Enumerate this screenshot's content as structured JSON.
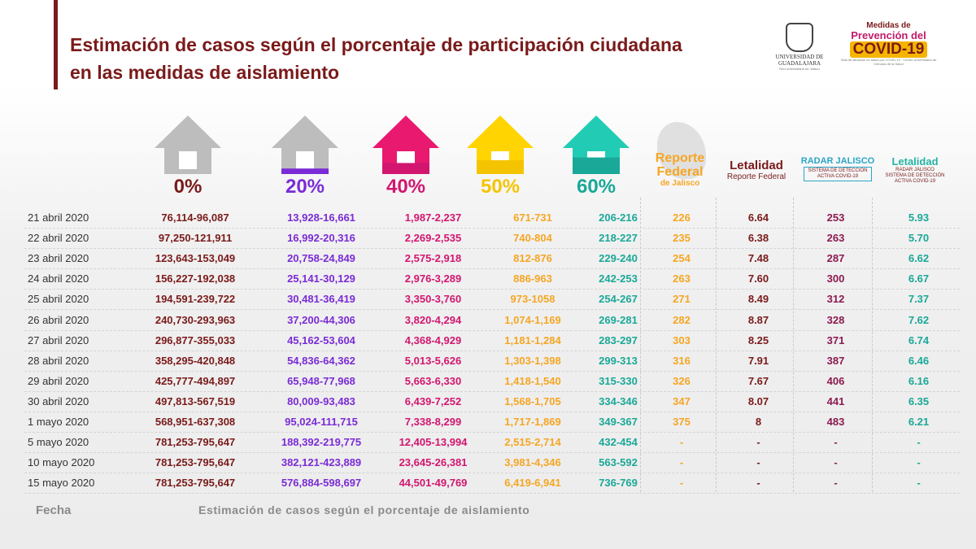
{
  "title": "Estimación de casos según el porcentaje de participación ciudadana en las medidas de aislamiento",
  "logo_udg": {
    "name": "UNIVERSIDAD DE GUADALAJARA",
    "tagline": "Red Universitaria de Jalisco"
  },
  "logo_covid": {
    "line1": "Medidas de",
    "line2": "Prevención del",
    "line3": "COVID-19",
    "line4": "Sala de situación en salud por COVID-19 · Centro Universitario de Ciencias de la Salud"
  },
  "houses": [
    {
      "label": "0%",
      "color": "#7a1a1a",
      "house_color": "#bdbdbd",
      "fill": 0
    },
    {
      "label": "20%",
      "color": "#7a2bd6",
      "house_color": "#bdbdbd",
      "fill": 0.2
    },
    {
      "label": "40%",
      "color": "#d21670",
      "house_color": "#e8196f",
      "fill": 0.4
    },
    {
      "label": "50%",
      "color": "#f5c400",
      "house_color": "#ffd400",
      "fill": 0.5
    },
    {
      "label": "60%",
      "color": "#1aa898",
      "house_color": "#22ccb4",
      "fill": 0.6
    }
  ],
  "headers": {
    "reporte_federal": {
      "line1": "Reporte",
      "line2": "Federal",
      "line3": "de Jalisco"
    },
    "letalidad1": {
      "line1": "Letalidad",
      "line2": "Reporte Federal"
    },
    "radar": {
      "line1": "RADAR JALISCO",
      "line2": "SISTEMA DE DETECCIÓN",
      "line3": "ACTIVA COVID-19"
    },
    "letalidad2": {
      "line1": "Letalidad",
      "line2": "RADAR JALISCO",
      "line3": "SISTEMA DE DETECCIÓN ACTIVA COVID-19"
    }
  },
  "rows": [
    {
      "date": "21 abril 2020",
      "p0": "76,114-96,087",
      "p20": "13,928-16,661",
      "p40": "1,987-2,237",
      "p50": "671-731",
      "p60": "206-216",
      "rf": "226",
      "let1": "6.64",
      "radar": "253",
      "let2": "5.93"
    },
    {
      "date": "22 abril 2020",
      "p0": "97,250-121,911",
      "p20": "16,992-20,316",
      "p40": "2,269-2,535",
      "p50": "740-804",
      "p60": "218-227",
      "rf": "235",
      "let1": "6.38",
      "radar": "263",
      "let2": "5.70"
    },
    {
      "date": "23 abril 2020",
      "p0": "123,643-153,049",
      "p20": "20,758-24,849",
      "p40": "2,575-2,918",
      "p50": "812-876",
      "p60": "229-240",
      "rf": "254",
      "let1": "7.48",
      "radar": "287",
      "let2": "6.62"
    },
    {
      "date": "24 abril 2020",
      "p0": "156,227-192,038",
      "p20": "25,141-30,129",
      "p40": "2,976-3,289",
      "p50": "886-963",
      "p60": "242-253",
      "rf": "263",
      "let1": "7.60",
      "radar": "300",
      "let2": "6.67"
    },
    {
      "date": "25 abril 2020",
      "p0": "194,591-239,722",
      "p20": "30,481-36,419",
      "p40": "3,350-3,760",
      "p50": "973-1058",
      "p60": "254-267",
      "rf": "271",
      "let1": "8.49",
      "radar": "312",
      "let2": "7.37"
    },
    {
      "date": "26 abril 2020",
      "p0": "240,730-293,963",
      "p20": "37,200-44,306",
      "p40": "3,820-4,294",
      "p50": "1,074-1,169",
      "p60": "269-281",
      "rf": "282",
      "let1": "8.87",
      "radar": "328",
      "let2": "7.62"
    },
    {
      "date": "27 abril 2020",
      "p0": "296,877-355,033",
      "p20": "45,162-53,604",
      "p40": "4,368-4,929",
      "p50": "1,181-1,284",
      "p60": "283-297",
      "rf": "303",
      "let1": "8.25",
      "radar": "371",
      "let2": "6.74"
    },
    {
      "date": "28 abril 2020",
      "p0": "358,295-420,848",
      "p20": "54,836-64,362",
      "p40": "5,013-5,626",
      "p50": "1,303-1,398",
      "p60": "299-313",
      "rf": "316",
      "let1": "7.91",
      "radar": "387",
      "let2": "6.46"
    },
    {
      "date": "29 abril 2020",
      "p0": "425,777-494,897",
      "p20": "65,948-77,968",
      "p40": "5,663-6,330",
      "p50": "1,418-1,540",
      "p60": "315-330",
      "rf": "326",
      "let1": "7.67",
      "radar": "406",
      "let2": "6.16"
    },
    {
      "date": "30 abril 2020",
      "p0": "497,813-567,519",
      "p20": "80,009-93,483",
      "p40": "6,439-7,252",
      "p50": "1,568-1,705",
      "p60": "334-346",
      "rf": "347",
      "let1": "8.07",
      "radar": "441",
      "let2": "6.35"
    },
    {
      "date": "1 mayo 2020",
      "p0": "568,951-637,308",
      "p20": "95,024-111,715",
      "p40": "7,338-8,299",
      "p50": "1,717-1,869",
      "p60": "349-367",
      "rf": "375",
      "let1": "8",
      "radar": "483",
      "let2": "6.21"
    },
    {
      "date": "5 mayo 2020",
      "p0": "781,253-795,647",
      "p20": "188,392-219,775",
      "p40": "12,405-13,994",
      "p50": "2,515-2,714",
      "p60": "432-454",
      "rf": "-",
      "let1": "-",
      "radar": "-",
      "let2": "-"
    },
    {
      "date": "10 mayo 2020",
      "p0": "781,253-795,647",
      "p20": "382,121-423,889",
      "p40": "23,645-26,381",
      "p50": "3,981-4,346",
      "p60": "563-592",
      "rf": "-",
      "let1": "-",
      "radar": "-",
      "let2": "-"
    },
    {
      "date": "15 mayo 2020",
      "p0": "781,253-795,647",
      "p20": "576,884-598,697",
      "p40": "44,501-49,769",
      "p50": "6,419-6,941",
      "p60": "736-769",
      "rf": "-",
      "let1": "-",
      "radar": "-",
      "let2": "-"
    }
  ],
  "footer": {
    "fecha": "Fecha",
    "estimacion": "Estimación de casos según el porcentaje de aislamiento"
  }
}
